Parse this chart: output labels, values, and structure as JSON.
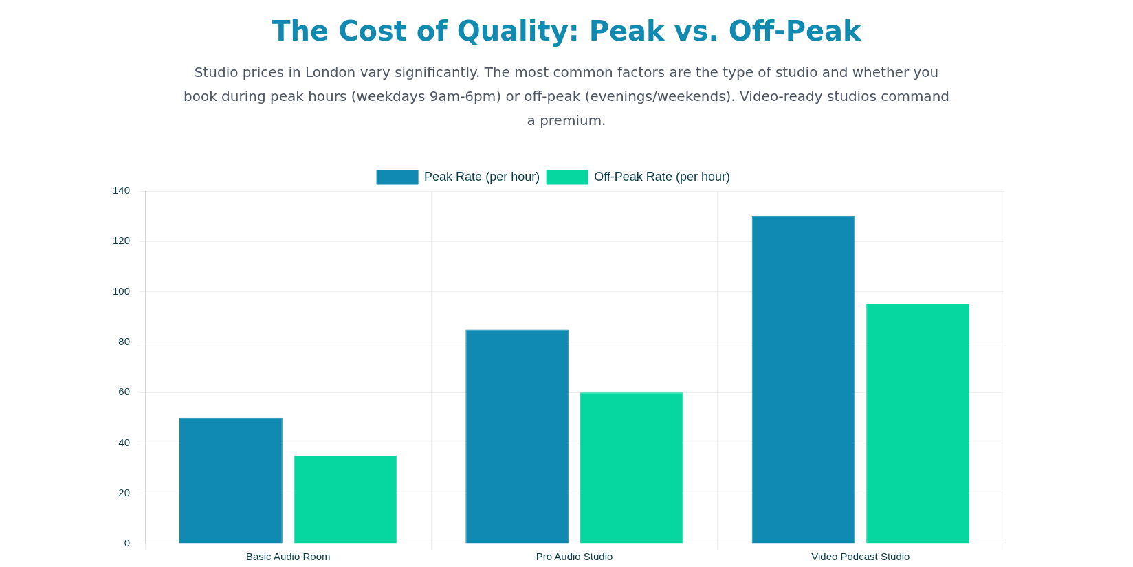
{
  "chart_data": {
    "type": "bar",
    "title": "The Cost of Quality: Peak vs. Off-Peak",
    "subtitle": "Studio prices in London vary significantly. The most common factors are the type of studio and whether you book during peak hours (weekdays 9am-6pm) or off-peak (evenings/weekends). Video-ready studios command a premium.",
    "categories": [
      "Basic Audio Room",
      "Pro Audio Studio",
      "Video Podcast Studio"
    ],
    "series": [
      {
        "name": "Peak Rate (per hour)",
        "color": "#118ab2",
        "values": [
          50,
          85,
          130
        ]
      },
      {
        "name": "Off-Peak Rate (per hour)",
        "color": "#06d6a0",
        "values": [
          35,
          60,
          95
        ]
      }
    ],
    "ylim": [
      0,
      140
    ],
    "yticks": [
      0,
      20,
      40,
      60,
      80,
      100,
      120,
      140
    ],
    "grid": true,
    "legend": "top"
  }
}
